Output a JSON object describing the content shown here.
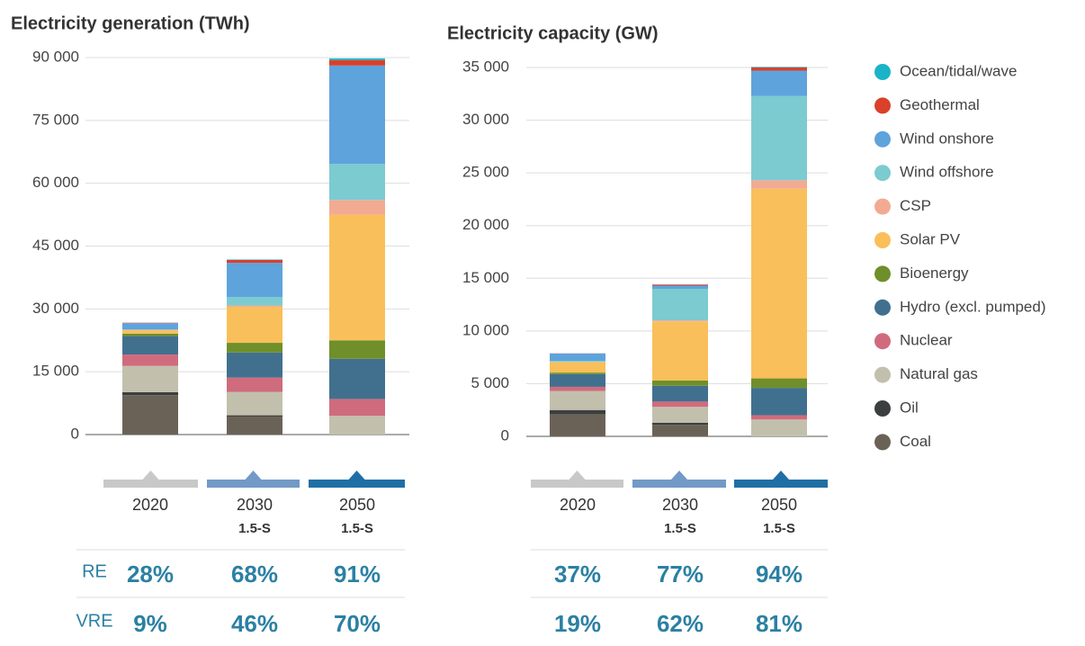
{
  "chart_data": [
    {
      "type": "bar",
      "stacked": true,
      "title": "Electricity generation (TWh)",
      "categories": [
        "2020",
        "2030",
        "2050"
      ],
      "subcategories": [
        null,
        "1.5-S",
        "1.5-S"
      ],
      "category_colors": [
        "#c8c8c8",
        "#7399c6",
        "#1f6fa5"
      ],
      "ylim": [
        0,
        90000
      ],
      "yticks": [
        0,
        {
          "value": 15000,
          "label": "15 000"
        },
        {
          "value": 30000,
          "label": "30 000"
        },
        {
          "value": 45000,
          "label": "45 000"
        },
        {
          "value": 60000,
          "label": "60 000"
        },
        {
          "value": 75000,
          "label": "75 000"
        },
        {
          "value": 90000,
          "label": "90 000"
        }
      ],
      "grid": true,
      "series": [
        {
          "name": "Coal",
          "color": "#6b6257",
          "values": [
            9400,
            4300,
            0
          ]
        },
        {
          "name": "Oil",
          "color": "#3c3f40",
          "values": [
            700,
            300,
            0
          ]
        },
        {
          "name": "Natural gas",
          "color": "#c2c0ad",
          "values": [
            6300,
            5600,
            4500
          ]
        },
        {
          "name": "Nuclear",
          "color": "#cf6b7d",
          "values": [
            2700,
            3400,
            4000
          ]
        },
        {
          "name": "Hydro (excl. pumped)",
          "color": "#41708f",
          "values": [
            4400,
            6000,
            9600
          ]
        },
        {
          "name": "Bioenergy",
          "color": "#6f8f2a",
          "values": [
            600,
            2300,
            4400
          ]
        },
        {
          "name": "Solar PV",
          "color": "#f9bf5a",
          "values": [
            800,
            8600,
            30000
          ]
        },
        {
          "name": "CSP",
          "color": "#f2ab92",
          "values": [
            100,
            300,
            3500
          ]
        },
        {
          "name": "Wind offshore",
          "color": "#7ccbd0",
          "values": [
            100,
            2000,
            8600
          ]
        },
        {
          "name": "Wind onshore",
          "color": "#5fa3dc",
          "values": [
            1500,
            8200,
            23500
          ]
        },
        {
          "name": "Geothermal",
          "color": "#d9412b",
          "values": [
            100,
            700,
            1300
          ]
        },
        {
          "name": "Ocean/tidal/wave",
          "color": "#1ab3c8",
          "values": [
            10,
            100,
            400
          ]
        }
      ],
      "shares": [
        {
          "values": [
            28,
            68,
            91
          ],
          "value_labels": [
            "28%",
            "68%",
            "91%"
          ]
        },
        {
          "values": [
            9,
            46,
            70
          ],
          "value_labels": [
            "9%",
            "46%",
            "70%"
          ]
        }
      ]
    },
    {
      "type": "bar",
      "stacked": true,
      "title": "Electricity capacity (GW)",
      "categories": [
        "2020",
        "2030",
        "2050"
      ],
      "subcategories": [
        null,
        "1.5-S",
        "1.5-S"
      ],
      "category_colors": [
        "#c8c8c8",
        "#7399c6",
        "#1f6fa5"
      ],
      "ylim": [
        0,
        35000
      ],
      "yticks": [
        0,
        {
          "value": 5000,
          "label": "5 000"
        },
        {
          "value": 10000,
          "label": "10 000"
        },
        {
          "value": 15000,
          "label": "15 000"
        },
        {
          "value": 20000,
          "label": "20 000"
        },
        {
          "value": 25000,
          "label": "25 000"
        },
        {
          "value": 30000,
          "label": "30 000"
        },
        {
          "value": 35000,
          "label": "35 000"
        }
      ],
      "grid": true,
      "series": [
        {
          "values": [
            2100,
            1100,
            0
          ]
        },
        {
          "values": [
            400,
            200,
            0
          ]
        },
        {
          "values": [
            1800,
            1500,
            1600
          ]
        },
        {
          "values": [
            400,
            500,
            400
          ]
        },
        {
          "values": [
            1200,
            1500,
            2600
          ]
        },
        {
          "values": [
            150,
            500,
            900
          ]
        },
        {
          "values": [
            1000,
            5600,
            18000
          ]
        },
        {
          "values": [
            10,
            100,
            800
          ]
        },
        {
          "values": [
            100,
            3000,
            8000
          ]
        },
        {
          "values": [
            700,
            300,
            2400
          ]
        },
        {
          "values": [
            15,
            100,
            300
          ]
        },
        {
          "values": [
            1,
            10,
            50
          ]
        }
      ],
      "shares": [
        {
          "values": [
            37,
            77,
            94
          ],
          "value_labels": [
            "37%",
            "77%",
            "94%"
          ]
        },
        {
          "values": [
            19,
            62,
            81
          ],
          "value_labels": [
            "19%",
            "62%",
            "81%"
          ]
        }
      ]
    }
  ],
  "share_rows": [
    "RE",
    "VRE"
  ]
}
